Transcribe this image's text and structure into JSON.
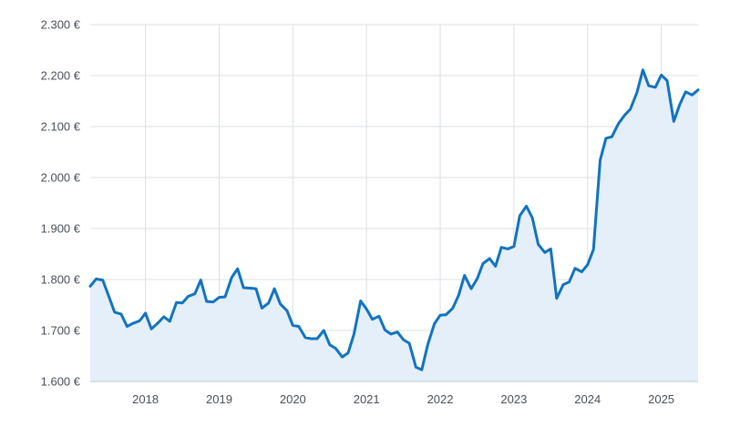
{
  "chart_data": {
    "type": "area",
    "title": "",
    "xlabel": "",
    "ylabel": "",
    "ylim": [
      1600,
      2300
    ],
    "xlim": [
      2017.25,
      2025.5
    ],
    "y_ticks": [
      1600,
      1700,
      1800,
      1900,
      2000,
      2100,
      2200,
      2300
    ],
    "y_tick_labels": [
      "1.600 €",
      "1.700 €",
      "1.800 €",
      "1.900 €",
      "2.000 €",
      "2.100 €",
      "2.200 €",
      "2.300 €"
    ],
    "x_ticks": [
      2018,
      2019,
      2020,
      2021,
      2022,
      2023,
      2024,
      2025
    ],
    "x_tick_labels": [
      "2018",
      "2019",
      "2020",
      "2021",
      "2022",
      "2023",
      "2024",
      "2025"
    ],
    "grid": true,
    "line_color": "#1273c0",
    "fill_color": "#e4eff9",
    "series": [
      {
        "x": [
          2017.25,
          2017.33,
          2017.42,
          2017.5,
          2017.58,
          2017.67,
          2017.75,
          2017.83,
          2017.92,
          2018.0,
          2018.08,
          2018.17,
          2018.25,
          2018.33,
          2018.42,
          2018.5,
          2018.58,
          2018.67,
          2018.75,
          2018.83,
          2018.92,
          2019.0,
          2019.08,
          2019.17,
          2019.25,
          2019.33,
          2019.42,
          2019.5,
          2019.58,
          2019.67,
          2019.75,
          2019.83,
          2019.92,
          2020.0,
          2020.08,
          2020.17,
          2020.25,
          2020.33,
          2020.42,
          2020.5,
          2020.58,
          2020.67,
          2020.75,
          2020.83,
          2020.92,
          2021.0,
          2021.08,
          2021.17,
          2021.25,
          2021.33,
          2021.42,
          2021.5,
          2021.58,
          2021.67,
          2021.75,
          2021.83,
          2021.92,
          2022.0,
          2022.08,
          2022.17,
          2022.25,
          2022.33,
          2022.42,
          2022.5,
          2022.58,
          2022.67,
          2022.75,
          2022.83,
          2022.92,
          2023.0,
          2023.08,
          2023.17,
          2023.25,
          2023.33,
          2023.42,
          2023.5,
          2023.58,
          2023.67,
          2023.75,
          2023.83,
          2023.92,
          2024.0,
          2024.08,
          2024.17,
          2024.25,
          2024.33,
          2024.42,
          2024.5,
          2024.58,
          2024.67,
          2024.75,
          2024.83,
          2024.92,
          2025.0,
          2025.08,
          2025.17,
          2025.25,
          2025.33,
          2025.42,
          2025.5
        ],
        "values": [
          1787,
          1801,
          1799,
          1768,
          1736,
          1732,
          1708,
          1714,
          1719,
          1734,
          1703,
          1715,
          1727,
          1718,
          1755,
          1754,
          1767,
          1772,
          1799,
          1757,
          1756,
          1765,
          1766,
          1804,
          1821,
          1784,
          1783,
          1782,
          1744,
          1754,
          1782,
          1752,
          1739,
          1710,
          1708,
          1686,
          1684,
          1684,
          1700,
          1672,
          1665,
          1648,
          1656,
          1693,
          1758,
          1742,
          1722,
          1728,
          1701,
          1693,
          1697,
          1682,
          1675,
          1628,
          1623,
          1672,
          1713,
          1730,
          1731,
          1744,
          1769,
          1808,
          1782,
          1801,
          1831,
          1841,
          1826,
          1863,
          1860,
          1865,
          1925,
          1944,
          1921,
          1869,
          1853,
          1860,
          1763,
          1790,
          1795,
          1822,
          1815,
          1829,
          1859,
          2034,
          2077,
          2080,
          2106,
          2122,
          2134,
          2167,
          2211,
          2180,
          2177,
          2201,
          2190,
          2110,
          2143,
          2168,
          2162,
          2172
        ]
      }
    ]
  }
}
